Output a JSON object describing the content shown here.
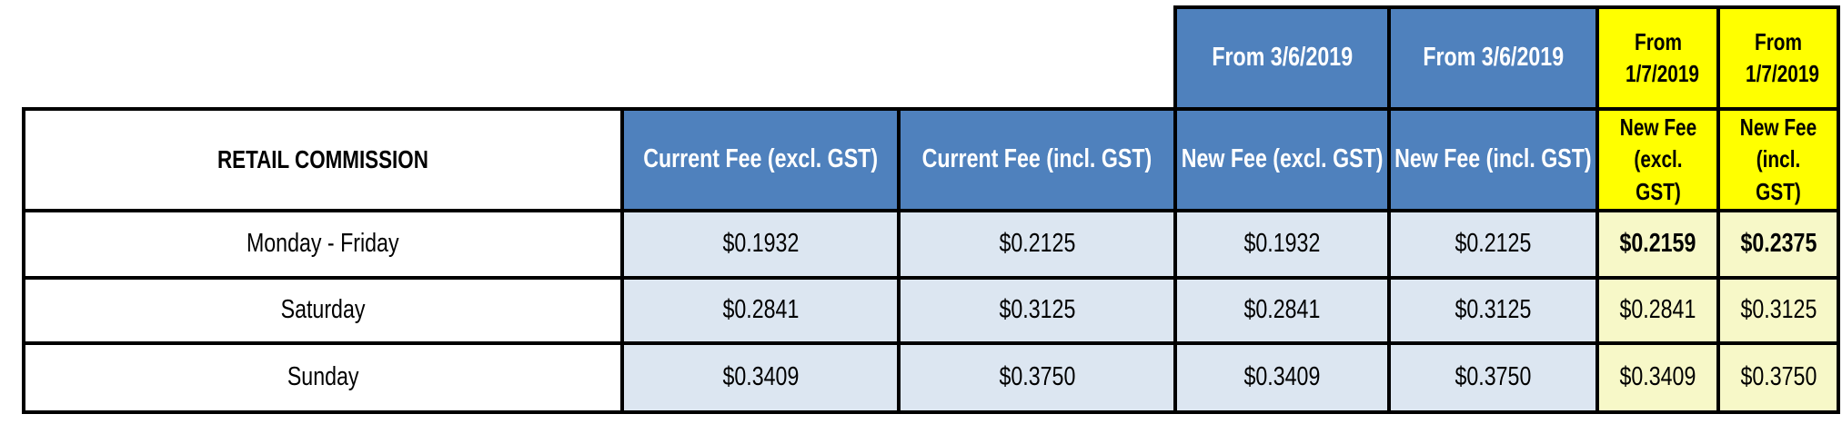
{
  "colors": {
    "header_blue": "#4F81BD",
    "cell_light_blue": "#DCE6F1",
    "header_yellow": "#FFFF00",
    "cell_light_yellow": "#F7F8C8"
  },
  "top_headers": [
    "From 3/6/2019",
    "From 3/6/2019",
    "From 1/7/2019",
    "From 1/7/2019"
  ],
  "table": {
    "title": "RETAIL COMMISSION",
    "columns": [
      "Current Fee (excl. GST)",
      "Current Fee (incl. GST)",
      "New Fee (excl. GST)",
      "New Fee (incl. GST)",
      "New Fee (excl. GST)",
      "New Fee (incl. GST)"
    ],
    "rows": [
      {
        "label": "Monday - Friday",
        "values": [
          "$0.1932",
          "$0.2125",
          "$0.1932",
          "$0.2125",
          "$0.2159",
          "$0.2375"
        ]
      },
      {
        "label": "Saturday",
        "values": [
          "$0.2841",
          "$0.3125",
          "$0.2841",
          "$0.3125",
          "$0.2841",
          "$0.3125"
        ]
      },
      {
        "label": "Sunday",
        "values": [
          "$0.3409",
          "$0.3750",
          "$0.3409",
          "$0.3750",
          "$0.3409",
          "$0.3750"
        ]
      }
    ]
  }
}
